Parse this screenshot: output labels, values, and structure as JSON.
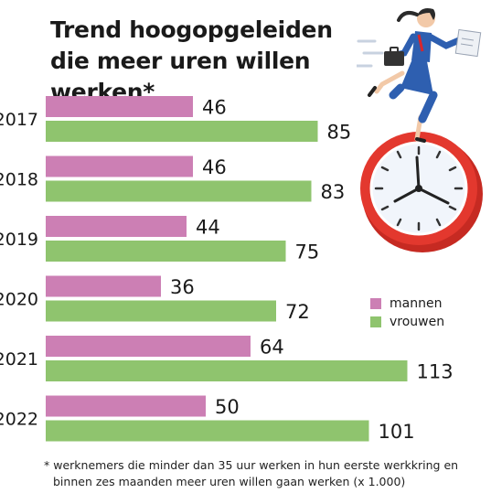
{
  "title": "Trend hoogopgeleiden die meer uren willen werken*",
  "chart_data": {
    "type": "bar",
    "orientation": "horizontal",
    "categories": [
      "2017",
      "2018",
      "2019",
      "2020",
      "2021",
      "2022"
    ],
    "series": [
      {
        "name": "mannen",
        "color": "#cc7fb4",
        "values": [
          46,
          46,
          44,
          36,
          64,
          50
        ]
      },
      {
        "name": "vrouwen",
        "color": "#8fc46e",
        "values": [
          85,
          83,
          75,
          72,
          113,
          101
        ]
      }
    ],
    "data_labels": true,
    "legend_position": "right",
    "grid": false
  },
  "footnote": {
    "line1": "* werknemers die minder dan 35 uur werken in hun eerste  werkkring en",
    "line2": "binnen zes maanden meer uren willen gaan werken (x 1.000)"
  },
  "illustration": {
    "subject": "businesswoman-running-on-clock",
    "icons": [
      "woman-figure-icon",
      "briefcase-icon",
      "papers-icon",
      "alarm-clock-icon"
    ],
    "clock_color": "#e3382e",
    "suit_color": "#2e5fb0"
  }
}
